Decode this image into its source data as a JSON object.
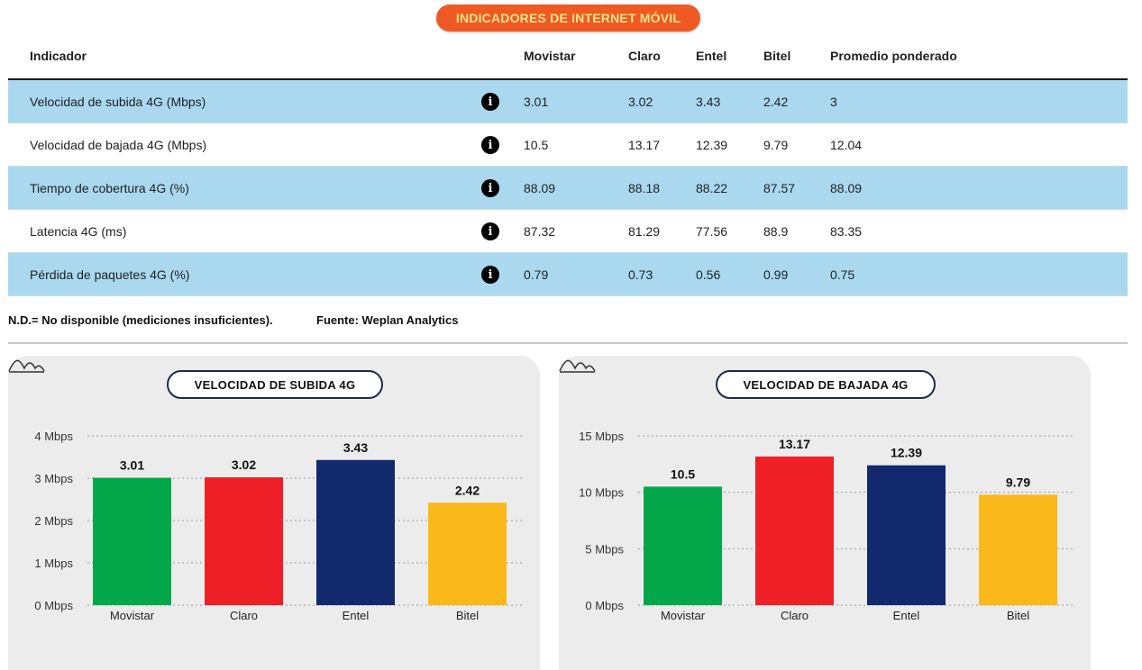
{
  "header": {
    "title": "INDICADORES DE INTERNET MÓVIL"
  },
  "table": {
    "columns": [
      "Indicador",
      "Movistar",
      "Claro",
      "Entel",
      "Bitel",
      "Promedio ponderado"
    ],
    "rows": [
      {
        "indicator": "Velocidad de subida 4G (Mbps)",
        "values": [
          "3.01",
          "3.02",
          "3.43",
          "2.42",
          "3"
        ]
      },
      {
        "indicator": "Velocidad de bajada 4G (Mbps)",
        "values": [
          "10.5",
          "13.17",
          "12.39",
          "9.79",
          "12.04"
        ]
      },
      {
        "indicator": "Tiempo de cobertura 4G (%)",
        "values": [
          "88.09",
          "88.18",
          "88.22",
          "87.57",
          "88.09"
        ]
      },
      {
        "indicator": "Latencia 4G (ms)",
        "values": [
          "87.32",
          "81.29",
          "77.56",
          "88.9",
          "83.35"
        ]
      },
      {
        "indicator": "Pérdida de paquetes 4G (%)",
        "values": [
          "0.79",
          "0.73",
          "0.56",
          "0.99",
          "0.75"
        ]
      }
    ],
    "info_icon": "info-icon"
  },
  "footnotes": {
    "nd": "N.D.= No disponible (mediciones insuficientes).",
    "source": "Fuente: Weplan Analytics"
  },
  "colors": {
    "Movistar": "#04a74a",
    "Claro": "#ee1f26",
    "Entel": "#12296e",
    "Bitel": "#fbb81b",
    "header_pill": "#ef5a24",
    "row_highlight": "#a9d8ef"
  },
  "chart_data": [
    {
      "type": "bar",
      "title": "VELOCIDAD DE SUBIDA 4G",
      "categories": [
        "Movistar",
        "Claro",
        "Entel",
        "Bitel"
      ],
      "values": [
        3.01,
        3.02,
        3.43,
        2.42
      ],
      "value_labels": [
        "3.01",
        "3.02",
        "3.43",
        "2.42"
      ],
      "yticks": [
        0,
        1,
        2,
        3,
        4
      ],
      "ytick_labels": [
        "0 Mbps",
        "1 Mbps",
        "2 Mbps",
        "3 Mbps",
        "4 Mbps"
      ],
      "ylim": [
        0,
        4
      ],
      "grid": true,
      "xlabel": "",
      "ylabel": ""
    },
    {
      "type": "bar",
      "title": "VELOCIDAD DE BAJADA 4G",
      "categories": [
        "Movistar",
        "Claro",
        "Entel",
        "Bitel"
      ],
      "values": [
        10.5,
        13.17,
        12.39,
        9.79
      ],
      "value_labels": [
        "10.5",
        "13.17",
        "12.39",
        "9.79"
      ],
      "yticks": [
        0,
        5,
        10,
        15
      ],
      "ytick_labels": [
        "0 Mbps",
        "5 Mbps",
        "10 Mbps",
        "15 Mbps"
      ],
      "ylim": [
        0,
        15
      ],
      "grid": true,
      "xlabel": "",
      "ylabel": ""
    }
  ]
}
